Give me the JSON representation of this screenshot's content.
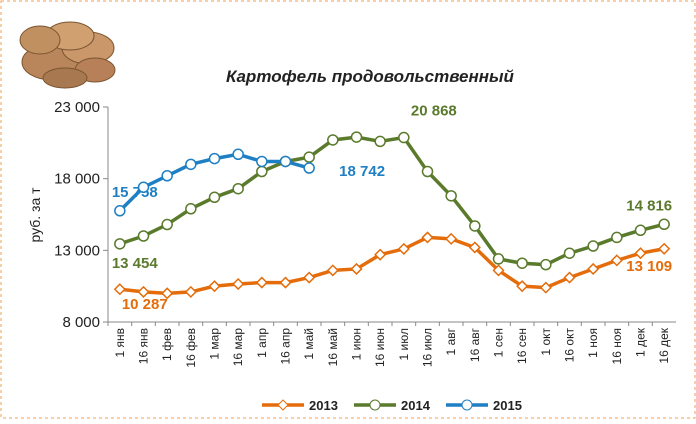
{
  "chart_data": {
    "type": "line",
    "title": "Картофель продовольственный",
    "y_label": "руб. за т",
    "categories": [
      "1 янв",
      "16 янв",
      "1 фев",
      "16 фев",
      "1 мар",
      "16 мар",
      "1 апр",
      "16 апр",
      "1 май",
      "16 май",
      "1 июн",
      "16 июн",
      "1 июл",
      "16 июл",
      "1 авг",
      "16 авг",
      "1 сен",
      "16 сен",
      "1 окт",
      "16 окт",
      "1 ноя",
      "16 ноя",
      "1 дек",
      "16 дек"
    ],
    "series": [
      {
        "name": "2013",
        "color": "#e46c0a",
        "marker": "diamond",
        "values": [
          10287,
          10100,
          10000,
          10100,
          10500,
          10650,
          10750,
          10750,
          11100,
          11600,
          11700,
          12700,
          13100,
          13900,
          13800,
          13200,
          11600,
          10500,
          10400,
          11100,
          11700,
          12300,
          12800,
          13109
        ],
        "value_labels": [
          "10 287",
          null,
          null,
          null,
          null,
          null,
          null,
          null,
          null,
          null,
          null,
          null,
          null,
          null,
          null,
          null,
          null,
          null,
          null,
          null,
          null,
          null,
          null,
          "13 109"
        ]
      },
      {
        "name": "2014",
        "color": "#5a7a2c",
        "marker": "circle",
        "values": [
          13454,
          14000,
          14800,
          15900,
          16700,
          17300,
          18500,
          19200,
          19500,
          20700,
          20900,
          20600,
          20868,
          18500,
          16800,
          14700,
          12400,
          12100,
          12000,
          12800,
          13300,
          13900,
          14400,
          14816
        ],
        "value_labels": [
          "13 454",
          null,
          null,
          null,
          null,
          null,
          null,
          null,
          null,
          null,
          null,
          null,
          "20 868",
          null,
          null,
          null,
          null,
          null,
          null,
          null,
          null,
          null,
          null,
          "14 816"
        ]
      },
      {
        "name": "2015",
        "color": "#1f7fc4",
        "marker": "circle",
        "values": [
          15758,
          17400,
          18200,
          19000,
          19400,
          19700,
          19200,
          19200,
          18742,
          null,
          null,
          null,
          null,
          null,
          null,
          null,
          null,
          null,
          null,
          null,
          null,
          null,
          null,
          null
        ],
        "value_labels": [
          "15 758",
          null,
          null,
          null,
          null,
          null,
          null,
          null,
          "18 742",
          null,
          null,
          null,
          null,
          null,
          null,
          null,
          null,
          null,
          null,
          null,
          null,
          null,
          null,
          null
        ]
      }
    ],
    "ylim": [
      8000,
      23000
    ],
    "yticks": [
      {
        "value": 8000,
        "label": "8 000"
      },
      {
        "value": 13000,
        "label": "13 000"
      },
      {
        "value": 18000,
        "label": "18 000"
      },
      {
        "value": 23000,
        "label": "23 000"
      }
    ],
    "grid": false,
    "legend": "bottom"
  }
}
